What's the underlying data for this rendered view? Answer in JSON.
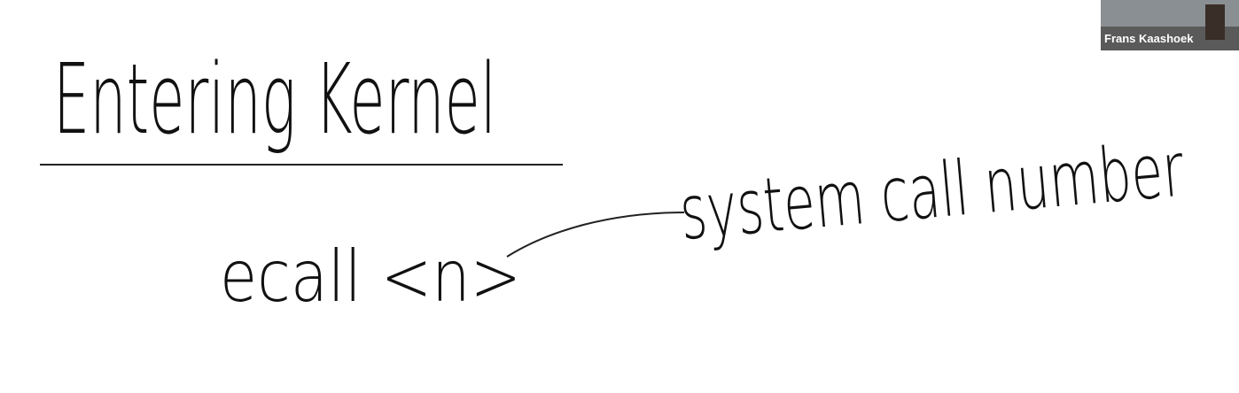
{
  "board": {
    "title": "Entering Kernel",
    "notes": [
      "ecall <n>",
      "system call number"
    ]
  },
  "participant": {
    "name": "Frans Kaashoek"
  }
}
